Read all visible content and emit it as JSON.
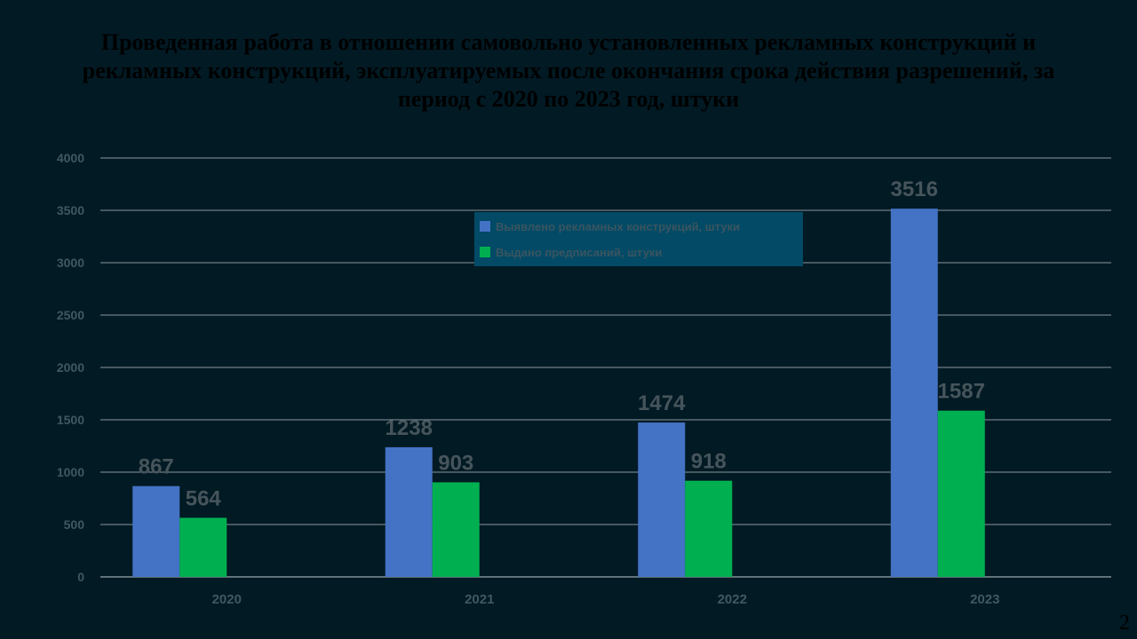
{
  "title": "Проведенная работа в отношении самовольно установленных рекламных конструкций и рекламных конструкций, эксплуатируемых после окончания срока действия разрешений, за период с 2020 по 2023 год, штуки",
  "slide_number": "2",
  "chart_data": {
    "type": "bar",
    "categories": [
      "2020",
      "2021",
      "2022",
      "2023"
    ],
    "series": [
      {
        "name": "Выявлено рекламных конструкций, штуки",
        "values": [
          867,
          1238,
          1474,
          3516
        ],
        "color": "#4472c4"
      },
      {
        "name": "Выдано предписаний, штуки",
        "values": [
          564,
          903,
          918,
          1587
        ],
        "color": "#00b050"
      }
    ],
    "ylim": [
      0,
      4000
    ],
    "yticks": [
      0,
      500,
      1000,
      1500,
      2000,
      2500,
      3000,
      3500,
      4000
    ],
    "grid": true,
    "legend": "top-center"
  }
}
